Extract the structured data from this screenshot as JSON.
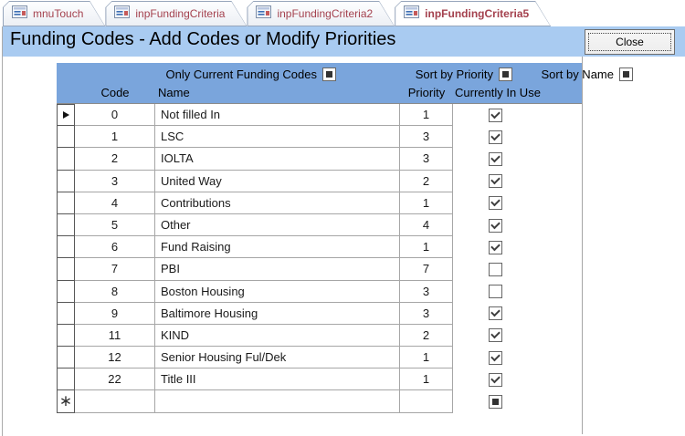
{
  "tabs": [
    {
      "label": "mnuTouch",
      "active": false
    },
    {
      "label": "inpFundingCriteria",
      "active": false
    },
    {
      "label": "inpFundingCriteria2",
      "active": false
    },
    {
      "label": "inpFundingCriteria5",
      "active": true
    }
  ],
  "titlebar": {
    "title": "Funding Codes - Add Codes or Modify Priorities",
    "close_label": "Close"
  },
  "filters": [
    {
      "label": "Only Current Funding Codes",
      "state": "filled"
    },
    {
      "label": "Sort by Priority",
      "state": "filled"
    },
    {
      "label": "Sort by Name",
      "state": "filled"
    }
  ],
  "columns": {
    "code": "Code",
    "name": "Name",
    "priority": "Priority",
    "in_use": "Currently In Use"
  },
  "rows": [
    {
      "code": "0",
      "name": "Not filled In",
      "priority": "1",
      "in_use": "checked",
      "current": true,
      "new_record": false
    },
    {
      "code": "1",
      "name": "LSC",
      "priority": "3",
      "in_use": "checked",
      "current": false,
      "new_record": false
    },
    {
      "code": "2",
      "name": "IOLTA",
      "priority": "3",
      "in_use": "checked",
      "current": false,
      "new_record": false
    },
    {
      "code": "3",
      "name": "United Way",
      "priority": "2",
      "in_use": "checked",
      "current": false,
      "new_record": false
    },
    {
      "code": "4",
      "name": "Contributions",
      "priority": "1",
      "in_use": "checked",
      "current": false,
      "new_record": false
    },
    {
      "code": "5",
      "name": "Other",
      "priority": "4",
      "in_use": "checked",
      "current": false,
      "new_record": false
    },
    {
      "code": "6",
      "name": "Fund Raising",
      "priority": "1",
      "in_use": "checked",
      "current": false,
      "new_record": false
    },
    {
      "code": "7",
      "name": "PBI",
      "priority": "7",
      "in_use": "unchecked",
      "current": false,
      "new_record": false
    },
    {
      "code": "8",
      "name": "Boston Housing",
      "priority": "3",
      "in_use": "unchecked",
      "current": false,
      "new_record": false
    },
    {
      "code": "9",
      "name": "Baltimore Housing",
      "priority": "3",
      "in_use": "checked",
      "current": false,
      "new_record": false
    },
    {
      "code": "11",
      "name": "KIND",
      "priority": "2",
      "in_use": "checked",
      "current": false,
      "new_record": false
    },
    {
      "code": "12",
      "name": "Senior Housing Ful/Dek",
      "priority": "1",
      "in_use": "checked",
      "current": false,
      "new_record": false
    },
    {
      "code": "22",
      "name": "Title III",
      "priority": "1",
      "in_use": "checked",
      "current": false,
      "new_record": false
    },
    {
      "code": "",
      "name": "",
      "priority": "",
      "in_use": "filled",
      "current": false,
      "new_record": true
    }
  ],
  "icons": {
    "tab_icon": "form-icon",
    "new_record_glyph": "∗"
  },
  "colors": {
    "titlebar_bg": "#a9cbf1",
    "header_bg": "#7aa5dc",
    "tab_text": "#a4414e",
    "tab_border": "#96a5bb",
    "gridline": "#a6a6a6"
  }
}
